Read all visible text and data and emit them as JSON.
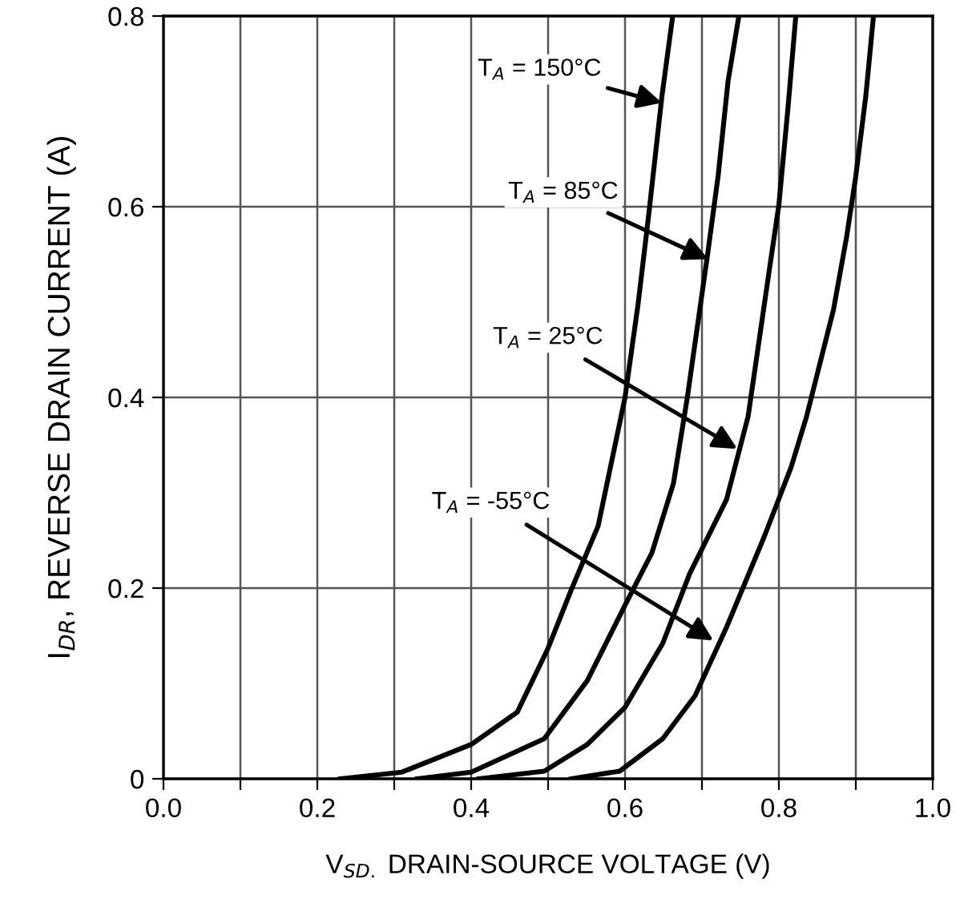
{
  "chart_data": {
    "type": "line",
    "xlabel": "V$_{SD.}$ DRAIN-SOURCE VOLTAGE (V)",
    "ylabel": "I$_{DR}$, REVERSE DRAIN CURRENT (A)",
    "series": [
      {
        "color": "#000000",
        "x": [
          0.23,
          0.31,
          0.4,
          0.46,
          0.5,
          0.53,
          0.565,
          0.6,
          0.617,
          0.631,
          0.648,
          0.662
        ],
        "values": [
          0,
          0.007,
          0.036,
          0.07,
          0.137,
          0.198,
          0.265,
          0.4,
          0.498,
          0.593,
          0.716,
          0.8
        ]
      },
      {
        "color": "#000000",
        "x": [
          0.33,
          0.4,
          0.495,
          0.551,
          0.6,
          0.635,
          0.663,
          0.681,
          0.707,
          0.721,
          0.734,
          0.748
        ],
        "values": [
          0,
          0.007,
          0.042,
          0.103,
          0.182,
          0.237,
          0.31,
          0.4,
          0.548,
          0.632,
          0.732,
          0.8
        ]
      },
      {
        "color": "#000000",
        "x": [
          0.41,
          0.495,
          0.551,
          0.6,
          0.649,
          0.684,
          0.732,
          0.76,
          0.788,
          0.8,
          0.812,
          0.822
        ],
        "values": [
          0,
          0.008,
          0.036,
          0.075,
          0.142,
          0.215,
          0.293,
          0.38,
          0.536,
          0.602,
          0.705,
          0.8
        ]
      },
      {
        "color": "#000000",
        "x": [
          0.53,
          0.593,
          0.649,
          0.691,
          0.732,
          0.781,
          0.816,
          0.836,
          0.871,
          0.888,
          0.9,
          0.913,
          0.923
        ],
        "values": [
          0,
          0.008,
          0.042,
          0.087,
          0.159,
          0.254,
          0.327,
          0.38,
          0.492,
          0.568,
          0.632,
          0.716,
          0.8
        ]
      }
    ],
    "annotations": [
      {
        "text": "T$_{A}$ = 150°C",
        "x": 0.648,
        "y": 0.709
      },
      {
        "text": "T$_{A}$ = 85°C",
        "x": 0.708,
        "y": 0.545
      },
      {
        "text": "T$_{A}$ = 25°C",
        "x": 0.746,
        "y": 0.346
      },
      {
        "text": "T$_{A}$ = -55°C",
        "x": 0.715,
        "y": 0.145
      }
    ],
    "xlim": [
      0,
      1
    ],
    "ylim": [
      0,
      0.8
    ],
    "xticks": [
      "0.0",
      {
        "value": 0.1,
        "label": null
      },
      {
        "value": 0.2,
        "label": "0.2"
      },
      {
        "value": 0.3,
        "label": null
      },
      {
        "value": 0.4,
        "label": "0.4"
      },
      {
        "value": 0.5,
        "label": null
      },
      {
        "value": 0.6,
        "label": "0.6"
      },
      {
        "value": 0.7,
        "label": null
      },
      {
        "value": 0.8,
        "label": "0.8"
      },
      {
        "value": 0.9,
        "label": null
      },
      {
        "value": 1.0,
        "label": "1.0"
      }
    ],
    "yticks": [
      0,
      0.2,
      0.4,
      0.6,
      0.8
    ],
    "grid": true,
    "marker": "none",
    "line_style": "solid",
    "legend": false
  }
}
